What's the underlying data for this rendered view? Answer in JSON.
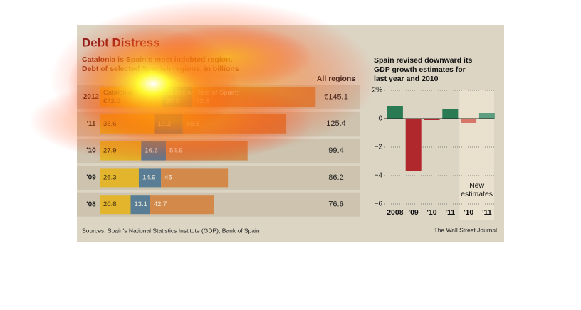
{
  "charts": [
    {
      "chart_data": {
        "type": "stacked-hbar",
        "title": "Debt Distress",
        "subtitle": [
          "Catalonia is Spain's most indebted region.",
          "Debt of selected Spanish regions, in billions"
        ],
        "categories": [
          "2012",
          "'11",
          "'10",
          "'09",
          "'08"
        ],
        "series": [
          {
            "name": "Catalonia:",
            "color": "#e2b52c",
            "values": [
              42.0,
              36.6,
              27.9,
              26.3,
              20.8
            ],
            "value_labels": [
              "€42.0",
              "36.6",
              "27.9",
              "26.3",
              "20.8"
            ]
          },
          {
            "name": "Valencia:",
            "color": "#587d95",
            "values": [
              20.3,
              19.3,
              16.6,
              14.9,
              13.1
            ]
          },
          {
            "name": "Rest of Spain:",
            "color": "#d2894a",
            "values": [
              82.8,
              69.5,
              54.9,
              45.0,
              42.7
            ]
          }
        ],
        "totals_label": "All regions",
        "totals": [
          145.1,
          125.4,
          99.4,
          86.2,
          76.6
        ],
        "totals_labels": [
          "€145.1",
          "125.4",
          "99.4",
          "86.2",
          "76.6"
        ],
        "source": "Sources: Spain's National Statistics Institute (GDP); Bank of Spain"
      }
    },
    {
      "chart_data": {
        "type": "bar",
        "title": [
          "Spain revised downward its",
          "GDP growth estimates for",
          "last year and 2010"
        ],
        "categories": [
          "2008",
          "'09",
          "'10",
          "'11",
          "'10",
          "'11"
        ],
        "values": [
          0.9,
          -3.7,
          -0.1,
          0.7,
          -0.3,
          0.4
        ],
        "colors": [
          "#2a7a54",
          "#b1282c",
          "#b1282c",
          "#2a7a54",
          "#d9766a",
          "#5e9e80"
        ],
        "ylim": [
          -6,
          2
        ],
        "yticks": [
          {
            "value": 2,
            "label": "2%"
          },
          0,
          {
            "value": -2,
            "label": "−2"
          },
          {
            "value": -4,
            "label": "−4"
          },
          {
            "value": -6,
            "label": "−6"
          }
        ],
        "grid": true,
        "annotation": [
          "New",
          "estimates"
        ],
        "credit": "The Wall Street Journal"
      }
    }
  ]
}
